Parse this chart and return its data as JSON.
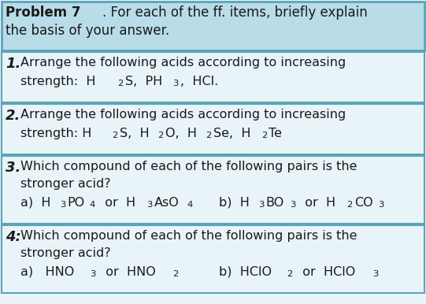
{
  "header_bg": "#b8dce8",
  "header_border": "#5ba3b8",
  "item_bg": "#e8f4f8",
  "item_border": "#5ba3b8",
  "text_color": "#1a1a1a",
  "items": [
    {
      "number": "1.",
      "line1": "Arrange the following acids according to increasing",
      "line2_parts": [
        {
          "text": "strength:  H",
          "style": "normal"
        },
        {
          "text": "2",
          "style": "sub"
        },
        {
          "text": "S,  PH",
          "style": "normal"
        },
        {
          "text": "3",
          "style": "sub"
        },
        {
          "text": ",  HCl.",
          "style": "normal"
        }
      ]
    },
    {
      "number": "2.",
      "line1": "Arrange the following acids according to increasing",
      "line2_parts": [
        {
          "text": "strength: H",
          "style": "normal"
        },
        {
          "text": "2",
          "style": "sub"
        },
        {
          "text": "S,  H",
          "style": "normal"
        },
        {
          "text": "2",
          "style": "sub"
        },
        {
          "text": "O,  H",
          "style": "normal"
        },
        {
          "text": "2",
          "style": "sub"
        },
        {
          "text": "Se,  H",
          "style": "normal"
        },
        {
          "text": "2",
          "style": "sub"
        },
        {
          "text": "Te",
          "style": "normal"
        }
      ]
    },
    {
      "number": "3.",
      "line1": "Which compound of each of the following pairs is the",
      "line2": "stronger acid?",
      "line3_left_parts": [
        {
          "text": "a)  H",
          "style": "normal"
        },
        {
          "text": "3",
          "style": "sub"
        },
        {
          "text": "PO",
          "style": "normal"
        },
        {
          "text": "4",
          "style": "sub"
        },
        {
          "text": "  or  H",
          "style": "normal"
        },
        {
          "text": "3",
          "style": "sub"
        },
        {
          "text": "AsO",
          "style": "normal"
        },
        {
          "text": "4",
          "style": "sub"
        }
      ],
      "line3_right_parts": [
        {
          "text": "b)  H",
          "style": "normal"
        },
        {
          "text": "3",
          "style": "sub"
        },
        {
          "text": "BO",
          "style": "normal"
        },
        {
          "text": "3",
          "style": "sub"
        },
        {
          "text": "  or  H",
          "style": "normal"
        },
        {
          "text": "2",
          "style": "sub"
        },
        {
          "text": "CO",
          "style": "normal"
        },
        {
          "text": "3",
          "style": "sub"
        }
      ]
    },
    {
      "number": "4:",
      "line1": "Which compound of each of the following pairs is the",
      "line2": "stronger acid?",
      "line3_left_parts": [
        {
          "text": "a)   HNO",
          "style": "normal"
        },
        {
          "text": "3",
          "style": "sub"
        },
        {
          "text": "  or  HNO",
          "style": "normal"
        },
        {
          "text": "2",
          "style": "sub"
        }
      ],
      "line3_right_parts": [
        {
          "text": "b)  HClO",
          "style": "normal"
        },
        {
          "text": "2",
          "style": "sub"
        },
        {
          "text": "  or  HClO",
          "style": "normal"
        },
        {
          "text": "3",
          "style": "sub"
        }
      ]
    }
  ]
}
